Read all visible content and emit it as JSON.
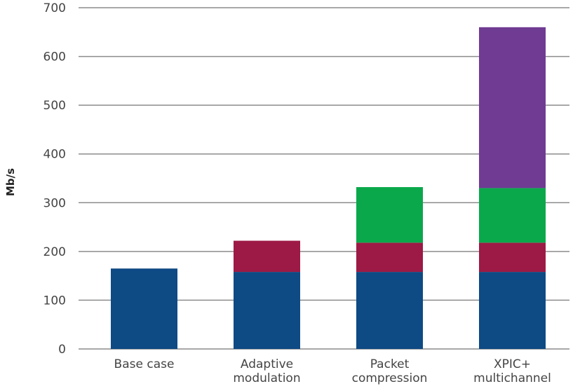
{
  "chart_data": {
    "type": "bar",
    "stacked": true,
    "title": "",
    "xlabel": "",
    "ylabel": "Mb/s",
    "ylim": [
      0,
      700
    ],
    "yticks": [
      "0",
      "100",
      "200",
      "300",
      "400",
      "500",
      "600",
      "700"
    ],
    "grid": true,
    "categories": [
      [
        "Base case"
      ],
      [
        "Adaptive",
        "modulation"
      ],
      [
        "Packet",
        "compression"
      ],
      [
        "XPIC+",
        "multichannel"
      ]
    ],
    "series": [
      {
        "color": "#0e4a84",
        "values": [
          165,
          158,
          158,
          158
        ]
      },
      {
        "color": "#9c1a45",
        "values": [
          0,
          64,
          60,
          60
        ]
      },
      {
        "color": "#0aa84b",
        "values": [
          0,
          0,
          114,
          112
        ]
      },
      {
        "color": "#6f3b93",
        "values": [
          0,
          0,
          0,
          330
        ]
      }
    ]
  }
}
